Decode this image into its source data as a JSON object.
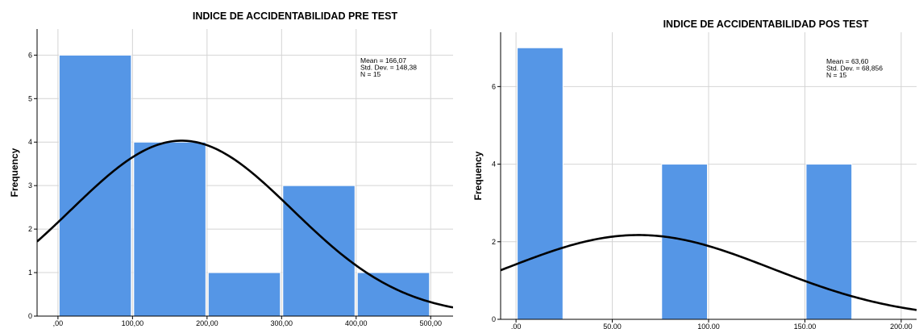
{
  "chart_data": [
    {
      "type": "bar",
      "title": "INDICE DE ACCIDENTABILIDAD PRE TEST",
      "ylabel": "Frequency",
      "xlabel": "",
      "bins": [
        [
          0,
          100
        ],
        [
          100,
          200
        ],
        [
          200,
          300
        ],
        [
          300,
          400
        ],
        [
          400,
          500
        ]
      ],
      "values": [
        6,
        4,
        1,
        3,
        1
      ],
      "xlim": [
        -28,
        530
      ],
      "ylim": [
        0,
        6.6
      ],
      "xticks": [
        0,
        100,
        200,
        300,
        400,
        500
      ],
      "xtick_labels": [
        ",00",
        "100,00",
        "200,00",
        "300,00",
        "400,00",
        "500,00"
      ],
      "yticks": [
        0,
        1,
        2,
        3,
        4,
        5,
        6
      ],
      "ytick_labels": [
        "0",
        "1",
        "2",
        "3",
        "4",
        "5",
        "6"
      ],
      "grid": true,
      "bar_color": "#5596e6",
      "curve": {
        "mean": 166.07,
        "std": 148.38,
        "n": 15,
        "bin_width": 100
      },
      "stats": [
        "Mean = 166,07",
        "Std. Dev. = 148,38",
        "N = 15"
      ]
    },
    {
      "type": "bar",
      "title": "INDICE DE ACCIDENTABILIDAD POS TEST",
      "ylabel": "Frequency",
      "xlabel": "",
      "bins": [
        [
          0,
          25
        ],
        [
          25,
          50
        ],
        [
          50,
          75
        ],
        [
          75,
          100
        ],
        [
          100,
          125
        ],
        [
          125,
          150
        ],
        [
          150,
          175
        ]
      ],
      "values": [
        7,
        0,
        0,
        4,
        0,
        0,
        4
      ],
      "xlim": [
        -8,
        208
      ],
      "ylim": [
        0,
        7.4
      ],
      "xticks": [
        0,
        50,
        100,
        150,
        200
      ],
      "xtick_labels": [
        ",00",
        "50,00",
        "100,00",
        "150,00",
        "200,00"
      ],
      "yticks": [
        0,
        2,
        4,
        6
      ],
      "ytick_labels": [
        "0",
        "2",
        "4",
        "6"
      ],
      "grid": true,
      "bar_color": "#5596e6",
      "curve": {
        "mean": 63.6,
        "std": 68.856,
        "n": 15,
        "bin_width": 25
      },
      "stats": [
        "Mean = 63,60",
        "Std. Dev. = 68,856",
        "N = 15"
      ]
    }
  ]
}
